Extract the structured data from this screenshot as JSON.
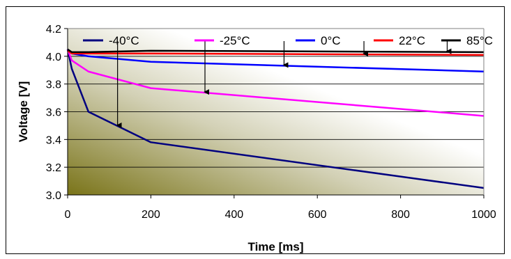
{
  "chart_data": {
    "type": "line",
    "title": "",
    "xlabel": "Time [ms]",
    "ylabel": "Voltage [V]",
    "xlim": [
      0,
      1000
    ],
    "ylim": [
      3.0,
      4.2
    ],
    "x_ticks": [
      "0",
      "200",
      "400",
      "600",
      "800",
      "1000"
    ],
    "y_ticks": [
      "3.0",
      "3.2",
      "3.4",
      "3.6",
      "3.8",
      "4.0",
      "4.2"
    ],
    "grid": "horizontal",
    "legend_position": "top",
    "series": [
      {
        "name": "-40°C",
        "color": "#00007f",
        "x": [
          0,
          10,
          50,
          200,
          1000
        ],
        "y": [
          4.05,
          3.91,
          3.6,
          3.38,
          3.05
        ],
        "arrow_x": 120
      },
      {
        "name": "-25°C",
        "color": "#ff00ff",
        "x": [
          0,
          10,
          50,
          200,
          1000
        ],
        "y": [
          4.05,
          3.97,
          3.89,
          3.77,
          3.57
        ],
        "arrow_x": 330
      },
      {
        "name": "0°C",
        "color": "#0000ff",
        "x": [
          0,
          10,
          50,
          200,
          1000
        ],
        "y": [
          4.05,
          4.02,
          4.0,
          3.96,
          3.89
        ],
        "arrow_x": 520
      },
      {
        "name": "22°C",
        "color": "#ff0000",
        "x": [
          0,
          10,
          50,
          200,
          1000
        ],
        "y": [
          4.04,
          4.02,
          4.02,
          4.02,
          4.01
        ],
        "arrow_x": 712
      },
      {
        "name": "85°C",
        "color": "#000000",
        "x": [
          0,
          10,
          50,
          200,
          1000
        ],
        "y": [
          4.05,
          4.03,
          4.03,
          4.04,
          4.03
        ],
        "arrow_x": 912
      }
    ]
  }
}
